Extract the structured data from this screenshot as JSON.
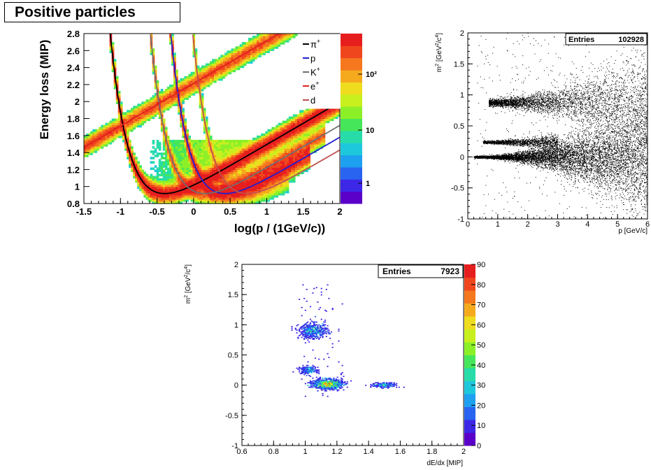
{
  "page_title": "Positive particles",
  "chart_data": [
    {
      "type": "heatmap",
      "xlabel": "log(p / (1GeV/c))",
      "ylabel": "Energy loss (MIP)",
      "xlim": [
        -1.5,
        2
      ],
      "ylim": [
        0.8,
        2.8
      ],
      "xticks": [
        "-1.5",
        "-1",
        "-0.5",
        "0",
        "0.5",
        "1",
        "1.5",
        "2"
      ],
      "yticks": [
        "0.8",
        "1",
        "1.2",
        "1.4",
        "1.6",
        "1.8",
        "2",
        "2.2",
        "2.4",
        "2.6",
        "2.8"
      ],
      "color_scale": "log",
      "colorbar_ticks": [
        "1",
        "10",
        "10²"
      ],
      "legend": [
        "π⁺",
        "p",
        "K⁺",
        "e⁺",
        "d"
      ],
      "legend_superscripts": [
        "+",
        "",
        "+",
        "+",
        ""
      ],
      "legend_bases": [
        "π",
        "p",
        "K",
        "e",
        "d"
      ],
      "series_colors": [
        "#000000",
        "#2020d0",
        "#707070",
        "#e02020",
        "#c05050"
      ],
      "curve_mass_GeV": [
        0.1396,
        0.9383,
        0.4937,
        0.000511,
        1.8756
      ],
      "legend_position": "top-right"
    },
    {
      "type": "scatter",
      "stats_label": "Entries",
      "stats_value": "102928",
      "xlabel": "p [GeV/c]",
      "ylabel": "m² [GeV²/c⁴]",
      "ylabel_parts": [
        "m",
        "2",
        " [GeV",
        "2",
        "/c",
        "4",
        "]"
      ],
      "xlim": [
        0,
        6
      ],
      "ylim": [
        -1,
        2
      ],
      "xticks": [
        "0",
        "1",
        "2",
        "3",
        "4",
        "5",
        "6"
      ],
      "yticks": [
        "-1",
        "-0.5",
        "0",
        "0.5",
        "1",
        "1.5",
        "2"
      ],
      "bands": [
        {
          "m2": 0.0,
          "p_range": [
            0.2,
            6
          ]
        },
        {
          "m2": 0.24,
          "p_range": [
            0.5,
            3
          ]
        },
        {
          "m2": 0.88,
          "p_range": [
            0.7,
            6
          ]
        }
      ]
    },
    {
      "type": "heatmap",
      "stats_label": "Entries",
      "stats_value": "7923",
      "xlabel": "dE/dx [MIP]",
      "ylabel": "m² [GeV²/c⁴]",
      "ylabel_parts": [
        "m",
        "2",
        " [GeV",
        "2",
        "/c",
        "4",
        "]"
      ],
      "xlim": [
        0.6,
        2
      ],
      "ylim": [
        -1,
        2
      ],
      "xticks": [
        "0.6",
        "0.8",
        "1",
        "1.2",
        "1.4",
        "1.6",
        "1.8",
        "2"
      ],
      "yticks": [
        "-1",
        "-0.5",
        "0",
        "0.5",
        "1",
        "1.5",
        "2"
      ],
      "colorbar_ticks": [
        "0",
        "10",
        "20",
        "30",
        "40",
        "50",
        "60",
        "70",
        "80",
        "90"
      ],
      "colorbar_range": [
        0,
        90
      ],
      "clusters": [
        {
          "x": 1.05,
          "y": 0.9,
          "sx": 0.045,
          "sy": 0.06,
          "n": 500,
          "peak": 15
        },
        {
          "x": 1.02,
          "y": 0.25,
          "sx": 0.03,
          "sy": 0.03,
          "n": 180,
          "peak": 12
        },
        {
          "x": 1.14,
          "y": 0.02,
          "sx": 0.045,
          "sy": 0.04,
          "n": 1100,
          "peak": 90
        },
        {
          "x": 1.5,
          "y": 0.0,
          "sx": 0.04,
          "sy": 0.02,
          "n": 200,
          "peak": 10
        }
      ]
    }
  ]
}
